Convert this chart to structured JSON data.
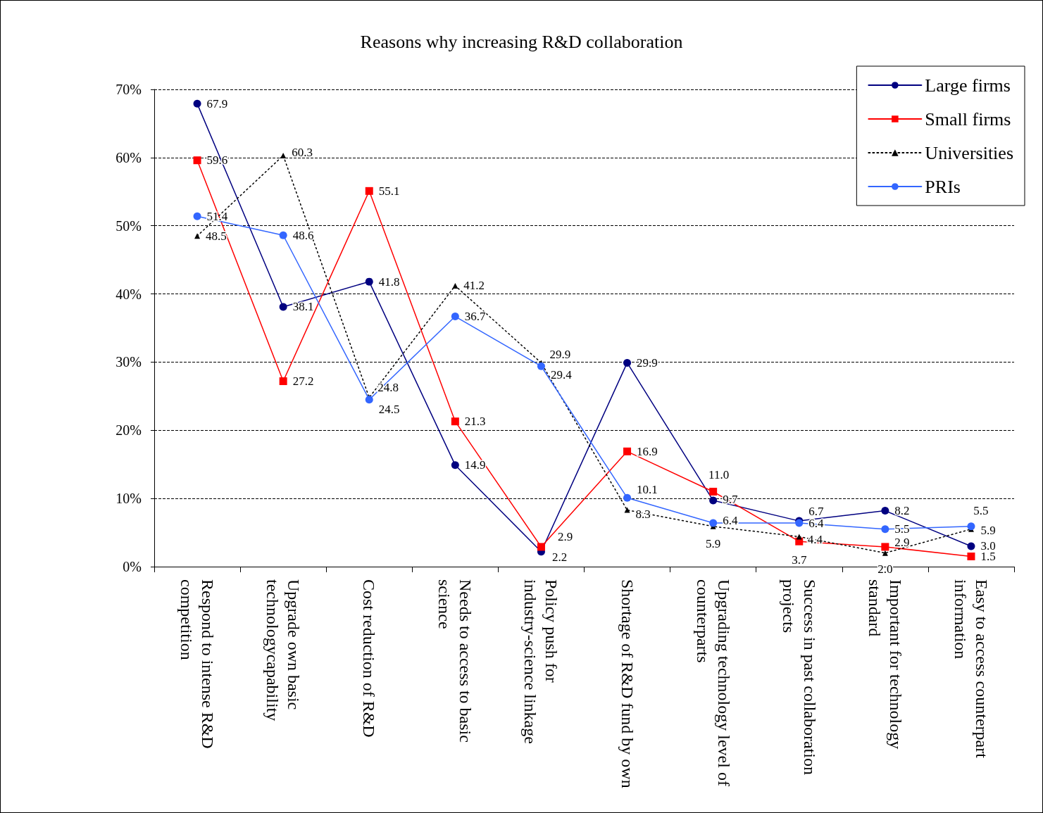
{
  "chart_data": {
    "type": "line",
    "title": "Reasons why increasing R&D collaboration",
    "categories": [
      "Respond to intense R&D competition",
      "Upgrade own basic technologycapability",
      "Cost reduction of R&D",
      "Needs to access to basic science",
      "Policy push for industry-science linkage",
      "Shortage of R&D fund by own",
      "Upgrading technology level of counterparts",
      "Success in past collaboration projects",
      "Important for technology standard",
      "Easy to access counterpart information"
    ],
    "series": [
      {
        "name": "Large firms",
        "color": "#000080",
        "marker": "circle",
        "line_style": "solid",
        "values": [
          67.9,
          38.1,
          41.8,
          14.9,
          2.2,
          29.9,
          9.7,
          6.7,
          8.2,
          3.0
        ],
        "value_labels": [
          "67.9",
          "38.1",
          "41.8",
          "14.9",
          "2.2",
          "29.9",
          "9.7",
          "6.7",
          "8.2",
          "3.0"
        ]
      },
      {
        "name": "Small firms",
        "color": "#ff0000",
        "marker": "square",
        "line_style": "solid",
        "values": [
          59.6,
          27.2,
          55.1,
          21.3,
          2.9,
          16.9,
          11.0,
          3.7,
          2.9,
          1.5
        ],
        "value_labels": [
          "59.6",
          "27.2",
          "55.1",
          "21.3",
          "2.9",
          "16.9",
          "11.0",
          "3.7",
          "2.9",
          "1.5"
        ]
      },
      {
        "name": "Universities",
        "color": "#000000",
        "marker": "triangle",
        "line_style": "dotted",
        "values": [
          48.5,
          60.3,
          24.8,
          41.2,
          29.9,
          8.3,
          5.9,
          4.4,
          2.0,
          5.5
        ],
        "value_labels": [
          "48.5",
          "60.3",
          "24.8",
          "41.2",
          "29.9",
          "8.3",
          "5.9",
          "4.4",
          "2.0",
          "5.5"
        ]
      },
      {
        "name": "PRIs",
        "color": "#3366ff",
        "marker": "circle",
        "line_style": "solid",
        "values": [
          51.4,
          48.6,
          24.5,
          36.7,
          29.4,
          10.1,
          6.4,
          6.4,
          5.5,
          5.9
        ],
        "value_labels": [
          "51.4",
          "48.6",
          "24.5",
          "36.7",
          "29.4",
          "10.1",
          "6.4",
          "6.4",
          "5.5",
          "5.9"
        ]
      }
    ],
    "ylim": [
      0,
      70
    ],
    "yticks": [
      {
        "value": 0,
        "label": "0%"
      },
      {
        "value": 10,
        "label": "10%"
      },
      {
        "value": 20,
        "label": "20%"
      },
      {
        "value": 30,
        "label": "30%"
      },
      {
        "value": 40,
        "label": "40%"
      },
      {
        "value": 50,
        "label": "50%"
      },
      {
        "value": 60,
        "label": "60%"
      },
      {
        "value": 70,
        "label": "70%"
      }
    ],
    "grid": "y",
    "legend": "top right"
  }
}
